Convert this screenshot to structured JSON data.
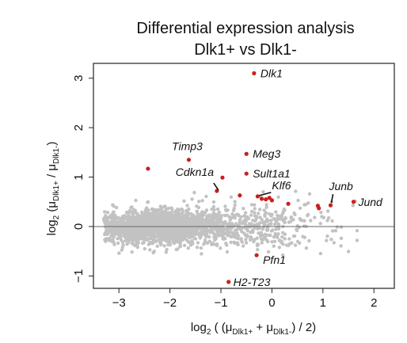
{
  "chart_data": {
    "type": "scatter",
    "title": [
      "Differential expression analysis",
      "Dlk1+ vs Dlk1-"
    ],
    "xlabel": {
      "prefix": "log",
      "base": "2",
      "open": " ( (μ",
      "sub1": "Dlk1+",
      "mid": " + μ",
      "sub2": "Dlk1-",
      "close": ") / 2)"
    },
    "ylabel": {
      "prefix": "log",
      "base": "2",
      "open": " (μ",
      "sub1": "Dlk1+",
      "mid": " / μ",
      "sub2": "Dlk1-",
      "close": ")"
    },
    "xlim": [
      -3.5,
      2.4
    ],
    "ylim": [
      -1.25,
      3.3
    ],
    "xticks": [
      -3,
      -2,
      -1,
      0,
      1,
      2
    ],
    "yticks": [
      -1,
      0,
      1,
      2,
      3
    ],
    "xtick_labels": [
      "−3",
      "−2",
      "−1",
      "0",
      "1",
      "2"
    ],
    "ytick_labels": [
      "−1",
      "0",
      "1",
      "2",
      "3"
    ],
    "reference_line_y": 0,
    "background_points": {
      "color": "#c2c2c2",
      "description_count": 2500
    },
    "highlight_color": "#cc1f1f",
    "highlighted_points": [
      {
        "x": -0.35,
        "y": 3.1
      },
      {
        "x": -1.63,
        "y": 1.35
      },
      {
        "x": -2.43,
        "y": 1.17
      },
      {
        "x": -0.5,
        "y": 1.47
      },
      {
        "x": -0.5,
        "y": 1.07
      },
      {
        "x": -0.97,
        "y": 0.99
      },
      {
        "x": -1.08,
        "y": 0.72
      },
      {
        "x": -0.63,
        "y": 0.63
      },
      {
        "x": -0.28,
        "y": 0.61
      },
      {
        "x": -0.2,
        "y": 0.56
      },
      {
        "x": -0.12,
        "y": 0.55
      },
      {
        "x": -0.05,
        "y": 0.58
      },
      {
        "x": 0.0,
        "y": 0.53
      },
      {
        "x": 0.32,
        "y": 0.46
      },
      {
        "x": 0.9,
        "y": 0.42
      },
      {
        "x": 0.92,
        "y": 0.37
      },
      {
        "x": 1.15,
        "y": 0.43
      },
      {
        "x": 1.6,
        "y": 0.5
      },
      {
        "x": -0.3,
        "y": -0.58
      },
      {
        "x": -0.85,
        "y": -1.12
      }
    ],
    "gene_labels": [
      {
        "text": "Dlk1",
        "x": -0.35,
        "y": 3.1
      },
      {
        "text": "Timp3",
        "x": -1.63,
        "y": 1.35
      },
      {
        "text": "Cdkn1a",
        "x": -1.08,
        "y": 0.72
      },
      {
        "text": "Meg3",
        "x": -0.5,
        "y": 1.47
      },
      {
        "text": "Sult1a1",
        "x": -0.5,
        "y": 1.07
      },
      {
        "text": "Klf6",
        "x": -0.28,
        "y": 0.61
      },
      {
        "text": "Junb",
        "x": 1.15,
        "y": 0.43
      },
      {
        "text": "Jund",
        "x": 1.6,
        "y": 0.5
      },
      {
        "text": "Pfn1",
        "x": -0.3,
        "y": -0.58
      },
      {
        "text": "H2-T23",
        "x": -0.85,
        "y": -1.12
      }
    ]
  }
}
